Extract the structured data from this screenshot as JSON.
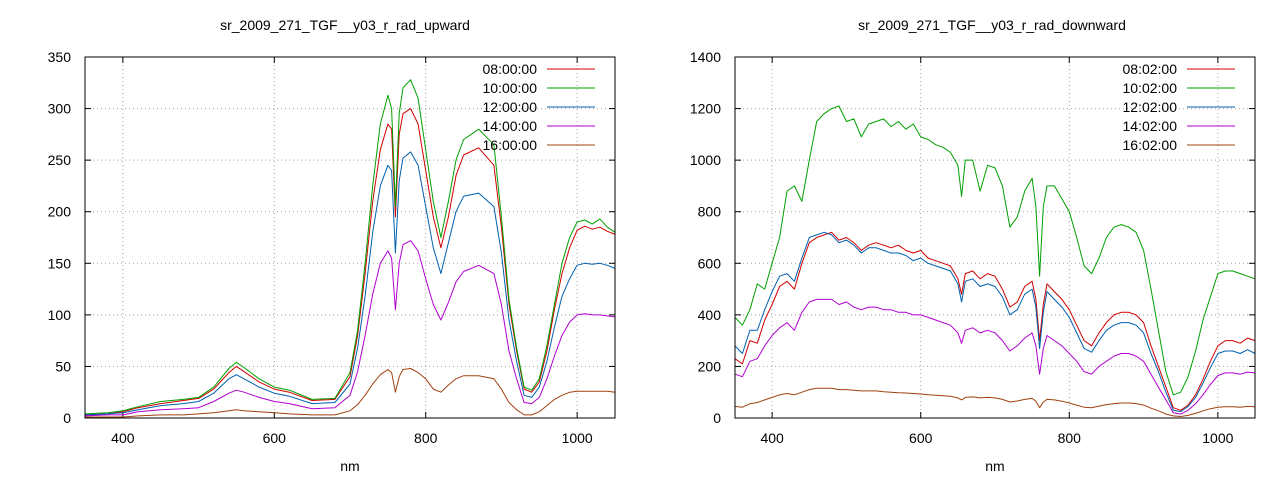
{
  "chart_data": [
    {
      "type": "line",
      "title": "sr_2009_271_TGF__y03_r_rad_upward",
      "xlabel": "nm",
      "ylabel": "",
      "xlim": [
        350,
        1050
      ],
      "ylim": [
        0,
        350
      ],
      "xticks": [
        400,
        600,
        800,
        1000
      ],
      "yticks": [
        0,
        50,
        100,
        150,
        200,
        250,
        300,
        350
      ],
      "grid": true,
      "legend_position": "top-right",
      "x": [
        350,
        380,
        400,
        420,
        450,
        480,
        500,
        520,
        540,
        550,
        560,
        580,
        600,
        620,
        650,
        680,
        700,
        710,
        720,
        730,
        740,
        750,
        755,
        760,
        765,
        770,
        780,
        790,
        800,
        810,
        820,
        830,
        840,
        850,
        870,
        890,
        900,
        910,
        920,
        930,
        940,
        950,
        960,
        970,
        980,
        990,
        1000,
        1010,
        1020,
        1030,
        1040,
        1050
      ],
      "series": [
        {
          "name": "08:00:00",
          "color": "#d00000",
          "values": [
            3,
            4,
            6,
            10,
            14,
            17,
            19,
            28,
            44,
            50,
            45,
            35,
            28,
            25,
            17,
            18,
            40,
            80,
            140,
            210,
            260,
            285,
            280,
            195,
            275,
            295,
            300,
            285,
            240,
            195,
            165,
            195,
            235,
            255,
            262,
            245,
            185,
            110,
            65,
            28,
            25,
            35,
            65,
            105,
            140,
            165,
            182,
            186,
            183,
            185,
            181,
            178
          ]
        },
        {
          "name": "10:00:00",
          "color": "#00a000",
          "values": [
            4,
            5,
            7,
            11,
            16,
            18,
            20,
            30,
            48,
            54,
            49,
            38,
            30,
            27,
            18,
            19,
            44,
            85,
            150,
            225,
            285,
            313,
            300,
            205,
            295,
            320,
            328,
            310,
            260,
            210,
            175,
            210,
            250,
            270,
            280,
            265,
            195,
            115,
            68,
            30,
            27,
            38,
            70,
            110,
            150,
            175,
            190,
            192,
            188,
            193,
            185,
            180
          ]
        },
        {
          "name": "12:00:00",
          "color": "#0060b0",
          "values": [
            3,
            4,
            5,
            8,
            12,
            14,
            16,
            24,
            38,
            42,
            38,
            30,
            24,
            21,
            14,
            15,
            33,
            68,
            118,
            180,
            225,
            245,
            240,
            160,
            230,
            252,
            258,
            245,
            205,
            165,
            140,
            170,
            200,
            215,
            218,
            205,
            160,
            95,
            55,
            22,
            20,
            30,
            55,
            88,
            118,
            135,
            148,
            150,
            149,
            150,
            148,
            145
          ]
        },
        {
          "name": "14:00:00",
          "color": "#b000d0",
          "values": [
            2,
            3,
            3,
            6,
            8,
            9,
            10,
            16,
            24,
            27,
            25,
            20,
            16,
            14,
            9,
            10,
            22,
            45,
            80,
            120,
            150,
            162,
            155,
            105,
            150,
            168,
            172,
            162,
            135,
            110,
            95,
            112,
            132,
            142,
            148,
            140,
            110,
            65,
            38,
            15,
            14,
            20,
            38,
            60,
            80,
            93,
            100,
            101,
            100,
            100,
            99,
            98
          ]
        },
        {
          "name": "16:00:00",
          "color": "#a04010",
          "values": [
            1,
            1,
            1,
            2,
            3,
            3,
            4,
            5,
            7,
            8,
            7,
            6,
            5,
            4,
            3,
            3,
            7,
            13,
            22,
            33,
            42,
            47,
            44,
            25,
            40,
            47,
            48,
            44,
            38,
            28,
            25,
            32,
            38,
            41,
            41,
            38,
            28,
            15,
            8,
            3,
            3,
            6,
            12,
            18,
            22,
            25,
            26,
            26,
            26,
            26,
            26,
            25
          ]
        }
      ]
    },
    {
      "type": "line",
      "title": "sr_2009_271_TGF__y03_r_rad_downward",
      "xlabel": "nm",
      "ylabel": "",
      "xlim": [
        350,
        1050
      ],
      "ylim": [
        0,
        1400
      ],
      "xticks": [
        400,
        600,
        800,
        1000
      ],
      "yticks": [
        0,
        200,
        400,
        600,
        800,
        1000,
        1200,
        1400
      ],
      "grid": true,
      "legend_position": "top-right",
      "x": [
        350,
        360,
        370,
        380,
        390,
        400,
        410,
        420,
        430,
        440,
        450,
        460,
        470,
        480,
        490,
        500,
        510,
        520,
        530,
        540,
        550,
        560,
        570,
        580,
        590,
        600,
        610,
        620,
        630,
        640,
        650,
        655,
        660,
        670,
        680,
        690,
        700,
        710,
        720,
        730,
        740,
        750,
        755,
        760,
        765,
        770,
        780,
        790,
        800,
        810,
        820,
        830,
        840,
        850,
        860,
        870,
        880,
        890,
        900,
        910,
        920,
        930,
        940,
        950,
        960,
        970,
        980,
        990,
        1000,
        1010,
        1020,
        1030,
        1040,
        1050
      ],
      "series": [
        {
          "name": "08:02:00",
          "color": "#d00000",
          "values": [
            230,
            210,
            300,
            290,
            380,
            440,
            510,
            530,
            500,
            600,
            680,
            700,
            710,
            720,
            690,
            700,
            680,
            650,
            670,
            680,
            670,
            660,
            670,
            650,
            640,
            650,
            620,
            610,
            600,
            590,
            540,
            480,
            560,
            570,
            540,
            560,
            550,
            500,
            430,
            450,
            510,
            530,
            460,
            300,
            440,
            520,
            490,
            460,
            420,
            360,
            300,
            280,
            330,
            370,
            400,
            410,
            410,
            400,
            370,
            280,
            200,
            120,
            40,
            30,
            50,
            90,
            150,
            220,
            280,
            300,
            300,
            290,
            310,
            300
          ]
        },
        {
          "name": "10:02:00",
          "color": "#00a000",
          "values": [
            390,
            360,
            420,
            520,
            500,
            600,
            700,
            880,
            900,
            840,
            1000,
            1150,
            1180,
            1200,
            1210,
            1150,
            1160,
            1090,
            1140,
            1150,
            1160,
            1130,
            1150,
            1120,
            1140,
            1090,
            1080,
            1060,
            1050,
            1030,
            980,
            860,
            1000,
            1000,
            880,
            980,
            970,
            900,
            740,
            780,
            880,
            930,
            820,
            550,
            820,
            900,
            900,
            850,
            800,
            700,
            590,
            560,
            620,
            700,
            740,
            750,
            740,
            720,
            650,
            500,
            340,
            180,
            90,
            100,
            160,
            260,
            380,
            470,
            560,
            570,
            570,
            560,
            550,
            540
          ]
        },
        {
          "name": "12:02:00",
          "color": "#0060b0",
          "values": [
            280,
            250,
            340,
            340,
            420,
            490,
            550,
            560,
            530,
            620,
            700,
            710,
            720,
            710,
            680,
            690,
            670,
            640,
            660,
            660,
            650,
            640,
            640,
            630,
            610,
            620,
            600,
            590,
            580,
            570,
            520,
            450,
            530,
            540,
            510,
            520,
            510,
            470,
            400,
            420,
            480,
            500,
            430,
            270,
            410,
            490,
            460,
            430,
            390,
            330,
            270,
            255,
            300,
            340,
            360,
            370,
            370,
            360,
            330,
            250,
            180,
            100,
            30,
            25,
            45,
            80,
            135,
            195,
            250,
            260,
            260,
            250,
            265,
            250
          ]
        },
        {
          "name": "14:02:00",
          "color": "#b000d0",
          "values": [
            170,
            160,
            220,
            230,
            280,
            320,
            350,
            370,
            340,
            410,
            450,
            460,
            460,
            460,
            440,
            450,
            430,
            420,
            430,
            430,
            420,
            420,
            410,
            410,
            400,
            400,
            390,
            380,
            370,
            360,
            330,
            290,
            340,
            350,
            330,
            340,
            330,
            300,
            260,
            280,
            310,
            330,
            280,
            170,
            270,
            320,
            300,
            280,
            250,
            220,
            180,
            170,
            200,
            220,
            240,
            250,
            250,
            240,
            220,
            170,
            120,
            70,
            20,
            15,
            30,
            55,
            90,
            130,
            165,
            175,
            175,
            170,
            178,
            175
          ]
        },
        {
          "name": "16:02:00",
          "color": "#a04010",
          "values": [
            45,
            42,
            55,
            60,
            70,
            80,
            90,
            95,
            90,
            100,
            110,
            115,
            115,
            115,
            110,
            110,
            108,
            105,
            105,
            105,
            102,
            100,
            98,
            97,
            95,
            93,
            90,
            88,
            86,
            84,
            78,
            70,
            80,
            82,
            78,
            80,
            78,
            72,
            62,
            66,
            72,
            76,
            65,
            40,
            62,
            72,
            70,
            65,
            58,
            50,
            42,
            40,
            46,
            52,
            56,
            58,
            58,
            56,
            50,
            38,
            28,
            15,
            8,
            6,
            10,
            18,
            28,
            36,
            42,
            44,
            44,
            42,
            45,
            44
          ]
        }
      ]
    }
  ]
}
